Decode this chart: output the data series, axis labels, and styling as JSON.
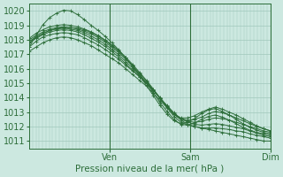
{
  "xlabel": "Pression niveau de la mer( hPa )",
  "bg_color": "#cce8e0",
  "grid_color": "#a0c8bc",
  "line_color": "#2d6e3a",
  "ylim": [
    1010.5,
    1020.5
  ],
  "yticks": [
    1011,
    1012,
    1013,
    1014,
    1015,
    1016,
    1017,
    1018,
    1019,
    1020
  ],
  "day_labels": [
    "Ven",
    "Sam",
    "Dim"
  ],
  "day_positions": [
    48,
    168,
    288
  ],
  "total_hours": 72,
  "series": [
    [
      1017.2,
      1017.5,
      1017.8,
      1018.0,
      1018.15,
      1018.2,
      1018.15,
      1018.0,
      1017.8,
      1017.6,
      1017.3,
      1017.0,
      1016.7,
      1016.4,
      1016.0,
      1015.6,
      1015.2,
      1014.8,
      1014.3,
      1013.8,
      1013.3,
      1012.7,
      1012.3,
      1012.1,
      1012.0,
      1011.9,
      1011.8,
      1011.7,
      1011.6,
      1011.5,
      1011.4,
      1011.3,
      1011.2,
      1011.1,
      1011.0,
      1011.0
    ],
    [
      1017.5,
      1017.9,
      1018.2,
      1018.35,
      1018.45,
      1018.5,
      1018.45,
      1018.35,
      1018.15,
      1017.9,
      1017.65,
      1017.35,
      1017.0,
      1016.65,
      1016.25,
      1015.85,
      1015.45,
      1015.0,
      1014.5,
      1014.0,
      1013.4,
      1012.85,
      1012.45,
      1012.15,
      1012.0,
      1011.9,
      1011.9,
      1011.9,
      1011.85,
      1011.8,
      1011.7,
      1011.65,
      1011.5,
      1011.4,
      1011.3,
      1011.2
    ],
    [
      1017.8,
      1018.1,
      1018.35,
      1018.55,
      1018.65,
      1018.7,
      1018.65,
      1018.55,
      1018.35,
      1018.1,
      1017.85,
      1017.55,
      1017.2,
      1016.8,
      1016.35,
      1015.9,
      1015.45,
      1015.0,
      1014.5,
      1013.95,
      1013.45,
      1012.95,
      1012.55,
      1012.3,
      1012.15,
      1012.1,
      1012.15,
      1012.2,
      1012.15,
      1012.05,
      1011.95,
      1011.85,
      1011.7,
      1011.55,
      1011.4,
      1011.3
    ],
    [
      1017.9,
      1018.2,
      1018.45,
      1018.65,
      1018.75,
      1018.8,
      1018.75,
      1018.65,
      1018.5,
      1018.25,
      1018.0,
      1017.7,
      1017.35,
      1016.95,
      1016.5,
      1016.05,
      1015.55,
      1015.05,
      1014.5,
      1013.95,
      1013.4,
      1012.9,
      1012.55,
      1012.35,
      1012.3,
      1012.35,
      1012.5,
      1012.6,
      1012.55,
      1012.45,
      1012.3,
      1012.15,
      1012.0,
      1011.85,
      1011.7,
      1011.6
    ],
    [
      1018.0,
      1018.3,
      1018.55,
      1018.75,
      1018.85,
      1018.9,
      1018.85,
      1018.75,
      1018.6,
      1018.4,
      1018.15,
      1017.85,
      1017.5,
      1017.1,
      1016.65,
      1016.2,
      1015.7,
      1015.15,
      1014.55,
      1013.95,
      1013.35,
      1012.85,
      1012.55,
      1012.45,
      1012.5,
      1012.65,
      1012.9,
      1013.05,
      1012.95,
      1012.8,
      1012.6,
      1012.4,
      1012.2,
      1012.0,
      1011.85,
      1011.7
    ],
    [
      1018.1,
      1018.45,
      1018.7,
      1018.9,
      1019.0,
      1019.05,
      1019.0,
      1018.9,
      1018.75,
      1018.55,
      1018.3,
      1018.0,
      1017.65,
      1017.25,
      1016.8,
      1016.3,
      1015.75,
      1015.2,
      1014.6,
      1013.95,
      1013.35,
      1012.85,
      1012.6,
      1012.6,
      1012.75,
      1013.0,
      1013.2,
      1013.35,
      1013.2,
      1013.0,
      1012.8,
      1012.55,
      1012.3,
      1012.05,
      1011.85,
      1011.7
    ],
    [
      1017.5,
      1018.3,
      1019.05,
      1019.55,
      1019.85,
      1020.05,
      1020.0,
      1019.75,
      1019.4,
      1019.0,
      1018.65,
      1018.25,
      1017.8,
      1017.3,
      1016.75,
      1016.15,
      1015.5,
      1014.85,
      1014.15,
      1013.45,
      1012.85,
      1012.4,
      1012.2,
      1012.3,
      1012.55,
      1012.9,
      1013.15,
      1013.25,
      1013.05,
      1012.8,
      1012.5,
      1012.2,
      1011.95,
      1011.75,
      1011.6,
      1011.5
    ],
    [
      1017.8,
      1018.15,
      1018.45,
      1018.65,
      1018.8,
      1018.85,
      1018.85,
      1018.8,
      1018.7,
      1018.5,
      1018.25,
      1017.95,
      1017.6,
      1017.2,
      1016.75,
      1016.2,
      1015.6,
      1015.0,
      1014.35,
      1013.65,
      1013.05,
      1012.5,
      1012.15,
      1012.1,
      1012.25,
      1012.5,
      1012.7,
      1012.8,
      1012.65,
      1012.45,
      1012.2,
      1011.95,
      1011.75,
      1011.6,
      1011.5,
      1011.4
    ]
  ]
}
